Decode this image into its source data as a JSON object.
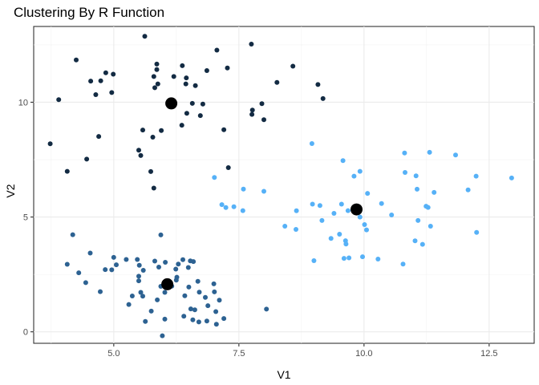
{
  "chart_data": {
    "type": "scatter",
    "title": "Clustering By R Function",
    "xlabel": "V1",
    "ylabel": "V2",
    "xlim": [
      3.4,
      13.4
    ],
    "ylim": [
      -0.5,
      13.3
    ],
    "xticks": [
      5,
      7.5,
      10,
      12.5
    ],
    "xtick_labels": [
      "5.0",
      "7.5",
      "10.0",
      "12.5"
    ],
    "yticks": [
      0,
      5,
      10
    ],
    "ytick_labels": [
      "0",
      "5",
      "10"
    ],
    "grid": true,
    "legend": "none",
    "series": [
      {
        "color": "#132B43",
        "points": [
          [
            5.62,
            12.87
          ],
          [
            7.75,
            12.53
          ],
          [
            7.06,
            12.27
          ],
          [
            4.25,
            11.84
          ],
          [
            5.86,
            11.66
          ],
          [
            8.58,
            11.57
          ],
          [
            6.37,
            11.59
          ],
          [
            7.27,
            11.49
          ],
          [
            4.84,
            11.28
          ],
          [
            4.99,
            11.22
          ],
          [
            5.86,
            11.42
          ],
          [
            6.86,
            11.38
          ],
          [
            5.8,
            11.12
          ],
          [
            6.2,
            11.12
          ],
          [
            6.45,
            11.06
          ],
          [
            4.54,
            10.92
          ],
          [
            4.74,
            10.93
          ],
          [
            6.44,
            10.8
          ],
          [
            5.88,
            10.8
          ],
          [
            6.63,
            10.72
          ],
          [
            8.26,
            10.86
          ],
          [
            9.08,
            10.77
          ],
          [
            5.82,
            10.63
          ],
          [
            4.96,
            10.42
          ],
          [
            4.64,
            10.33
          ],
          [
            9.18,
            10.16
          ],
          [
            3.9,
            10.11
          ],
          [
            6.57,
            9.95
          ],
          [
            6.78,
            9.92
          ],
          [
            7.96,
            9.94
          ],
          [
            6.46,
            9.52
          ],
          [
            6.73,
            9.42
          ],
          [
            7.77,
            9.66
          ],
          [
            7.76,
            9.47
          ],
          [
            8.0,
            9.24
          ],
          [
            6.36,
            9.0
          ],
          [
            5.58,
            8.79
          ],
          [
            5.95,
            8.77
          ],
          [
            7.2,
            8.8
          ],
          [
            4.7,
            8.51
          ],
          [
            5.78,
            8.48
          ],
          [
            3.73,
            8.19
          ],
          [
            5.5,
            7.91
          ],
          [
            4.46,
            7.52
          ],
          [
            5.54,
            7.68
          ],
          [
            7.29,
            7.15
          ],
          [
            5.74,
            6.98
          ],
          [
            4.07,
            6.99
          ],
          [
            5.8,
            6.26
          ]
        ]
      },
      {
        "color": "#2D6292",
        "points": [
          [
            4.18,
            4.23
          ],
          [
            5.94,
            4.22
          ],
          [
            4.53,
            3.43
          ],
          [
            5.0,
            3.24
          ],
          [
            5.25,
            3.15
          ],
          [
            5.47,
            3.15
          ],
          [
            5.82,
            3.08
          ],
          [
            6.38,
            3.14
          ],
          [
            6.53,
            3.09
          ],
          [
            6.59,
            3.06
          ],
          [
            6.03,
            3.03
          ],
          [
            6.29,
            2.95
          ],
          [
            4.07,
            2.94
          ],
          [
            5.05,
            2.92
          ],
          [
            5.51,
            2.9
          ],
          [
            5.9,
            2.82
          ],
          [
            6.49,
            2.8
          ],
          [
            6.24,
            2.73
          ],
          [
            5.59,
            2.68
          ],
          [
            4.96,
            2.7
          ],
          [
            4.83,
            2.71
          ],
          [
            4.3,
            2.57
          ],
          [
            5.5,
            2.42
          ],
          [
            6.26,
            2.38
          ],
          [
            6.25,
            2.25
          ],
          [
            5.5,
            2.22
          ],
          [
            6.68,
            2.2
          ],
          [
            7.0,
            2.09
          ],
          [
            4.44,
            2.14
          ],
          [
            5.94,
            1.98
          ],
          [
            6.16,
            1.99
          ],
          [
            6.5,
            1.95
          ],
          [
            6.02,
            1.72
          ],
          [
            7.01,
            1.74
          ],
          [
            5.54,
            1.72
          ],
          [
            6.71,
            1.73
          ],
          [
            4.73,
            1.75
          ],
          [
            5.37,
            1.56
          ],
          [
            5.58,
            1.55
          ],
          [
            6.42,
            1.57
          ],
          [
            6.83,
            1.5
          ],
          [
            7.11,
            1.38
          ],
          [
            5.87,
            1.39
          ],
          [
            6.88,
            1.14
          ],
          [
            5.3,
            1.19
          ],
          [
            6.54,
            1.0
          ],
          [
            6.62,
            0.96
          ],
          [
            8.05,
            0.99
          ],
          [
            5.75,
            0.9
          ],
          [
            7.04,
            0.88
          ],
          [
            6.4,
            0.68
          ],
          [
            7.2,
            0.58
          ],
          [
            6.58,
            0.52
          ],
          [
            6.02,
            0.55
          ],
          [
            6.86,
            0.47
          ],
          [
            5.63,
            0.45
          ],
          [
            6.7,
            0.43
          ],
          [
            7.05,
            0.33
          ],
          [
            5.97,
            -0.17
          ]
        ]
      },
      {
        "color": "#56B1F7",
        "points": [
          [
            8.96,
            8.2
          ],
          [
            10.81,
            7.79
          ],
          [
            11.31,
            7.82
          ],
          [
            11.83,
            7.7
          ],
          [
            9.58,
            7.46
          ],
          [
            9.92,
            6.99
          ],
          [
            10.82,
            6.94
          ],
          [
            9.8,
            6.78
          ],
          [
            11.04,
            6.79
          ],
          [
            12.24,
            6.78
          ],
          [
            12.95,
            6.7
          ],
          [
            7.01,
            6.72
          ],
          [
            7.59,
            6.22
          ],
          [
            8.0,
            6.12
          ],
          [
            11.06,
            6.21
          ],
          [
            12.08,
            6.18
          ],
          [
            11.4,
            6.07
          ],
          [
            10.07,
            6.03
          ],
          [
            8.97,
            5.56
          ],
          [
            9.12,
            5.5
          ],
          [
            9.55,
            5.56
          ],
          [
            7.16,
            5.54
          ],
          [
            7.4,
            5.45
          ],
          [
            10.35,
            5.59
          ],
          [
            11.24,
            5.47
          ],
          [
            11.28,
            5.42
          ],
          [
            7.24,
            5.41
          ],
          [
            7.58,
            5.28
          ],
          [
            9.68,
            5.28
          ],
          [
            8.65,
            5.27
          ],
          [
            9.4,
            5.16
          ],
          [
            10.55,
            5.09
          ],
          [
            9.92,
            5.0
          ],
          [
            9.16,
            4.85
          ],
          [
            11.08,
            4.85
          ],
          [
            10.01,
            4.67
          ],
          [
            8.42,
            4.6
          ],
          [
            11.33,
            4.6
          ],
          [
            8.64,
            4.46
          ],
          [
            10.05,
            4.44
          ],
          [
            9.51,
            4.25
          ],
          [
            9.63,
            3.97
          ],
          [
            12.25,
            4.33
          ],
          [
            9.34,
            4.07
          ],
          [
            11.02,
            3.96
          ],
          [
            11.17,
            3.81
          ],
          [
            9.64,
            3.82
          ],
          [
            9.97,
            3.27
          ],
          [
            9.7,
            3.22
          ],
          [
            9.0,
            3.1
          ],
          [
            9.6,
            3.2
          ],
          [
            10.28,
            3.17
          ],
          [
            10.78,
            2.95
          ]
        ]
      }
    ],
    "centers": {
      "color": "#000000",
      "points": [
        [
          6.15,
          9.95
        ],
        [
          6.07,
          2.07
        ],
        [
          9.85,
          5.33
        ]
      ]
    }
  }
}
